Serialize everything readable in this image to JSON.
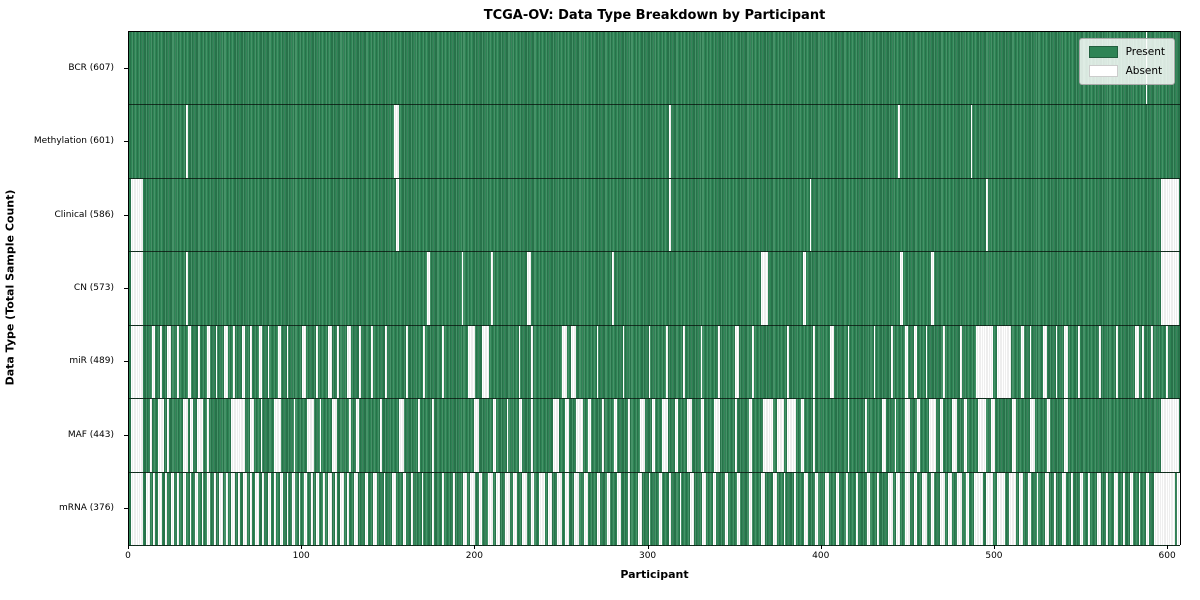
{
  "title": "TCGA-OV: Data Type Breakdown by Participant",
  "chart_data": {
    "type": "heatmap",
    "title": "TCGA-OV: Data Type Breakdown by Participant",
    "xlabel": "Participant",
    "ylabel": "Data Type (Total Sample Count)",
    "x_ticks": [
      0,
      100,
      200,
      300,
      400,
      500,
      600
    ],
    "xlim": [
      0,
      608
    ],
    "n_participants": 608,
    "grid": false,
    "legend_position": "upper right",
    "legend": {
      "entries": [
        {
          "label": "Present",
          "color": "#2e8455"
        },
        {
          "label": "Absent",
          "color": "#ffffff"
        }
      ]
    },
    "colors": {
      "present": "#2e8455",
      "present_edge": "#215f3e",
      "present_highlight": "#5d9f7c",
      "absent": "#ffffff",
      "absent_edge": "#dcdcdc",
      "axis": "#000000"
    },
    "rows": [
      {
        "data_type": "BCR",
        "label": "BCR (607)",
        "present_count": 607,
        "absent_count": 1,
        "absent_ranges": [
          [
            587,
            1
          ]
        ]
      },
      {
        "data_type": "Methylation",
        "label": "Methylation (601)",
        "present_count": 601,
        "absent_count": 7,
        "absent_ranges": [
          [
            33,
            1
          ],
          [
            153,
            3
          ],
          [
            312,
            1
          ],
          [
            444,
            1
          ],
          [
            486,
            1
          ]
        ]
      },
      {
        "data_type": "Clinical",
        "label": "Clinical (586)",
        "present_count": 586,
        "absent_count": 22,
        "absent_ranges": [
          [
            1,
            7
          ],
          [
            154,
            2
          ],
          [
            312,
            1
          ],
          [
            393,
            1
          ],
          [
            495,
            1
          ],
          [
            596,
            10
          ]
        ]
      },
      {
        "data_type": "CN",
        "label": "CN (573)",
        "present_count": 573,
        "absent_count": 35,
        "absent_ranges": [
          [
            1,
            7
          ],
          [
            33,
            1
          ],
          [
            172,
            2
          ],
          [
            192,
            1
          ],
          [
            209,
            1
          ],
          [
            230,
            2
          ],
          [
            279,
            1
          ],
          [
            365,
            4
          ],
          [
            389,
            2
          ],
          [
            445,
            2
          ],
          [
            463,
            2
          ],
          [
            596,
            10
          ]
        ]
      },
      {
        "data_type": "miR",
        "label": "miR (489)",
        "present_count": 489,
        "absent_count": 119,
        "absent_ranges": [
          [
            1,
            7
          ],
          [
            13,
            2
          ],
          [
            18,
            1
          ],
          [
            22,
            2
          ],
          [
            28,
            1
          ],
          [
            34,
            2
          ],
          [
            40,
            1
          ],
          [
            45,
            2
          ],
          [
            50,
            1
          ],
          [
            55,
            2
          ],
          [
            60,
            1
          ],
          [
            65,
            2
          ],
          [
            70,
            1
          ],
          [
            75,
            2
          ],
          [
            80,
            1
          ],
          [
            86,
            2
          ],
          [
            91,
            1
          ],
          [
            100,
            2
          ],
          [
            108,
            1
          ],
          [
            115,
            2
          ],
          [
            120,
            1
          ],
          [
            126,
            2
          ],
          [
            133,
            1
          ],
          [
            140,
            1
          ],
          [
            148,
            1
          ],
          [
            160,
            1
          ],
          [
            170,
            1
          ],
          [
            181,
            1
          ],
          [
            196,
            4
          ],
          [
            204,
            4
          ],
          [
            225,
            1
          ],
          [
            232,
            1
          ],
          [
            250,
            3
          ],
          [
            255,
            3
          ],
          [
            270,
            1
          ],
          [
            285,
            1
          ],
          [
            300,
            1
          ],
          [
            310,
            1
          ],
          [
            320,
            1
          ],
          [
            330,
            1
          ],
          [
            340,
            1
          ],
          [
            350,
            2
          ],
          [
            360,
            1
          ],
          [
            380,
            1
          ],
          [
            395,
            1
          ],
          [
            405,
            2
          ],
          [
            415,
            1
          ],
          [
            430,
            1
          ],
          [
            440,
            1
          ],
          [
            448,
            2
          ],
          [
            453,
            2
          ],
          [
            460,
            1
          ],
          [
            470,
            1
          ],
          [
            480,
            1
          ],
          [
            489,
            10
          ],
          [
            501,
            8
          ],
          [
            515,
            2
          ],
          [
            520,
            1
          ],
          [
            528,
            2
          ],
          [
            535,
            1
          ],
          [
            540,
            2
          ],
          [
            548,
            1
          ],
          [
            560,
            1
          ],
          [
            570,
            1
          ],
          [
            581,
            2
          ],
          [
            585,
            1
          ],
          [
            590,
            1
          ],
          [
            599,
            1
          ]
        ]
      },
      {
        "data_type": "MAF",
        "label": "MAF (443)",
        "present_count": 443,
        "absent_count": 165,
        "absent_ranges": [
          [
            1,
            7
          ],
          [
            12,
            1
          ],
          [
            17,
            3
          ],
          [
            22,
            1
          ],
          [
            31,
            3
          ],
          [
            35,
            2
          ],
          [
            39,
            4
          ],
          [
            45,
            1
          ],
          [
            59,
            8
          ],
          [
            70,
            2
          ],
          [
            76,
            1
          ],
          [
            84,
            4
          ],
          [
            95,
            1
          ],
          [
            103,
            4
          ],
          [
            110,
            1
          ],
          [
            117,
            3
          ],
          [
            127,
            1
          ],
          [
            131,
            2
          ],
          [
            145,
            1
          ],
          [
            156,
            3
          ],
          [
            167,
            1
          ],
          [
            175,
            1
          ],
          [
            199,
            3
          ],
          [
            210,
            2
          ],
          [
            218,
            1
          ],
          [
            225,
            2
          ],
          [
            232,
            1
          ],
          [
            245,
            3
          ],
          [
            252,
            2
          ],
          [
            258,
            4
          ],
          [
            265,
            2
          ],
          [
            273,
            1
          ],
          [
            280,
            2
          ],
          [
            288,
            1
          ],
          [
            295,
            3
          ],
          [
            302,
            2
          ],
          [
            308,
            3
          ],
          [
            315,
            2
          ],
          [
            322,
            3
          ],
          [
            330,
            2
          ],
          [
            338,
            3
          ],
          [
            350,
            1
          ],
          [
            358,
            2
          ],
          [
            366,
            6
          ],
          [
            374,
            4
          ],
          [
            380,
            5
          ],
          [
            388,
            2
          ],
          [
            395,
            1
          ],
          [
            415,
            1
          ],
          [
            425,
            1
          ],
          [
            435,
            2
          ],
          [
            442,
            1
          ],
          [
            448,
            3
          ],
          [
            455,
            2
          ],
          [
            462,
            4
          ],
          [
            468,
            2
          ],
          [
            475,
            3
          ],
          [
            482,
            2
          ],
          [
            490,
            5
          ],
          [
            498,
            2
          ],
          [
            510,
            2
          ],
          [
            520,
            3
          ],
          [
            530,
            2
          ],
          [
            540,
            2
          ],
          [
            596,
            10
          ]
        ]
      },
      {
        "data_type": "mRNA",
        "label": "mRNA (376)",
        "present_count": 376,
        "absent_count": 232,
        "absent_ranges": [
          [
            1,
            7
          ],
          [
            10,
            2
          ],
          [
            14,
            1
          ],
          [
            17,
            2
          ],
          [
            21,
            1
          ],
          [
            24,
            2
          ],
          [
            28,
            1
          ],
          [
            31,
            2
          ],
          [
            35,
            1
          ],
          [
            38,
            2
          ],
          [
            42,
            1
          ],
          [
            45,
            2
          ],
          [
            49,
            1
          ],
          [
            52,
            2
          ],
          [
            56,
            1
          ],
          [
            59,
            2
          ],
          [
            63,
            1
          ],
          [
            66,
            2
          ],
          [
            70,
            1
          ],
          [
            73,
            2
          ],
          [
            77,
            1
          ],
          [
            80,
            2
          ],
          [
            84,
            1
          ],
          [
            87,
            2
          ],
          [
            91,
            1
          ],
          [
            94,
            2
          ],
          [
            98,
            1
          ],
          [
            101,
            2
          ],
          [
            105,
            1
          ],
          [
            108,
            2
          ],
          [
            112,
            1
          ],
          [
            115,
            2
          ],
          [
            119,
            1
          ],
          [
            122,
            2
          ],
          [
            126,
            1
          ],
          [
            130,
            2
          ],
          [
            136,
            2
          ],
          [
            141,
            2
          ],
          [
            147,
            1
          ],
          [
            152,
            2
          ],
          [
            158,
            2
          ],
          [
            163,
            1
          ],
          [
            169,
            1
          ],
          [
            175,
            1
          ],
          [
            181,
            1
          ],
          [
            187,
            1
          ],
          [
            193,
            2
          ],
          [
            197,
            3
          ],
          [
            202,
            2
          ],
          [
            207,
            3
          ],
          [
            212,
            2
          ],
          [
            217,
            3
          ],
          [
            222,
            2
          ],
          [
            227,
            3
          ],
          [
            232,
            2
          ],
          [
            237,
            3
          ],
          [
            242,
            2
          ],
          [
            247,
            3
          ],
          [
            252,
            2
          ],
          [
            257,
            3
          ],
          [
            263,
            2
          ],
          [
            270,
            2
          ],
          [
            276,
            2
          ],
          [
            282,
            2
          ],
          [
            288,
            1
          ],
          [
            294,
            2
          ],
          [
            300,
            1
          ],
          [
            306,
            2
          ],
          [
            312,
            1
          ],
          [
            318,
            1
          ],
          [
            324,
            2
          ],
          [
            331,
            2
          ],
          [
            337,
            2
          ],
          [
            344,
            2
          ],
          [
            351,
            2
          ],
          [
            358,
            2
          ],
          [
            365,
            2
          ],
          [
            372,
            2
          ],
          [
            378,
            1
          ],
          [
            384,
            1
          ],
          [
            390,
            2
          ],
          [
            396,
            2
          ],
          [
            402,
            2
          ],
          [
            408,
            2
          ],
          [
            414,
            1
          ],
          [
            420,
            1
          ],
          [
            426,
            2
          ],
          [
            432,
            1
          ],
          [
            438,
            3
          ],
          [
            443,
            2
          ],
          [
            448,
            3
          ],
          [
            453,
            2
          ],
          [
            458,
            3
          ],
          [
            463,
            2
          ],
          [
            468,
            3
          ],
          [
            473,
            2
          ],
          [
            478,
            3
          ],
          [
            483,
            2
          ],
          [
            488,
            5
          ],
          [
            495,
            4
          ],
          [
            501,
            5
          ],
          [
            508,
            4
          ],
          [
            514,
            2
          ],
          [
            519,
            2
          ],
          [
            524,
            1
          ],
          [
            529,
            2
          ],
          [
            534,
            1
          ],
          [
            539,
            2
          ],
          [
            544,
            1
          ],
          [
            549,
            2
          ],
          [
            554,
            1
          ],
          [
            559,
            2
          ],
          [
            564,
            1
          ],
          [
            569,
            2
          ],
          [
            574,
            1
          ],
          [
            578,
            2
          ],
          [
            583,
            1
          ],
          [
            587,
            2
          ],
          [
            592,
            12
          ],
          [
            605,
            2
          ]
        ]
      }
    ]
  }
}
